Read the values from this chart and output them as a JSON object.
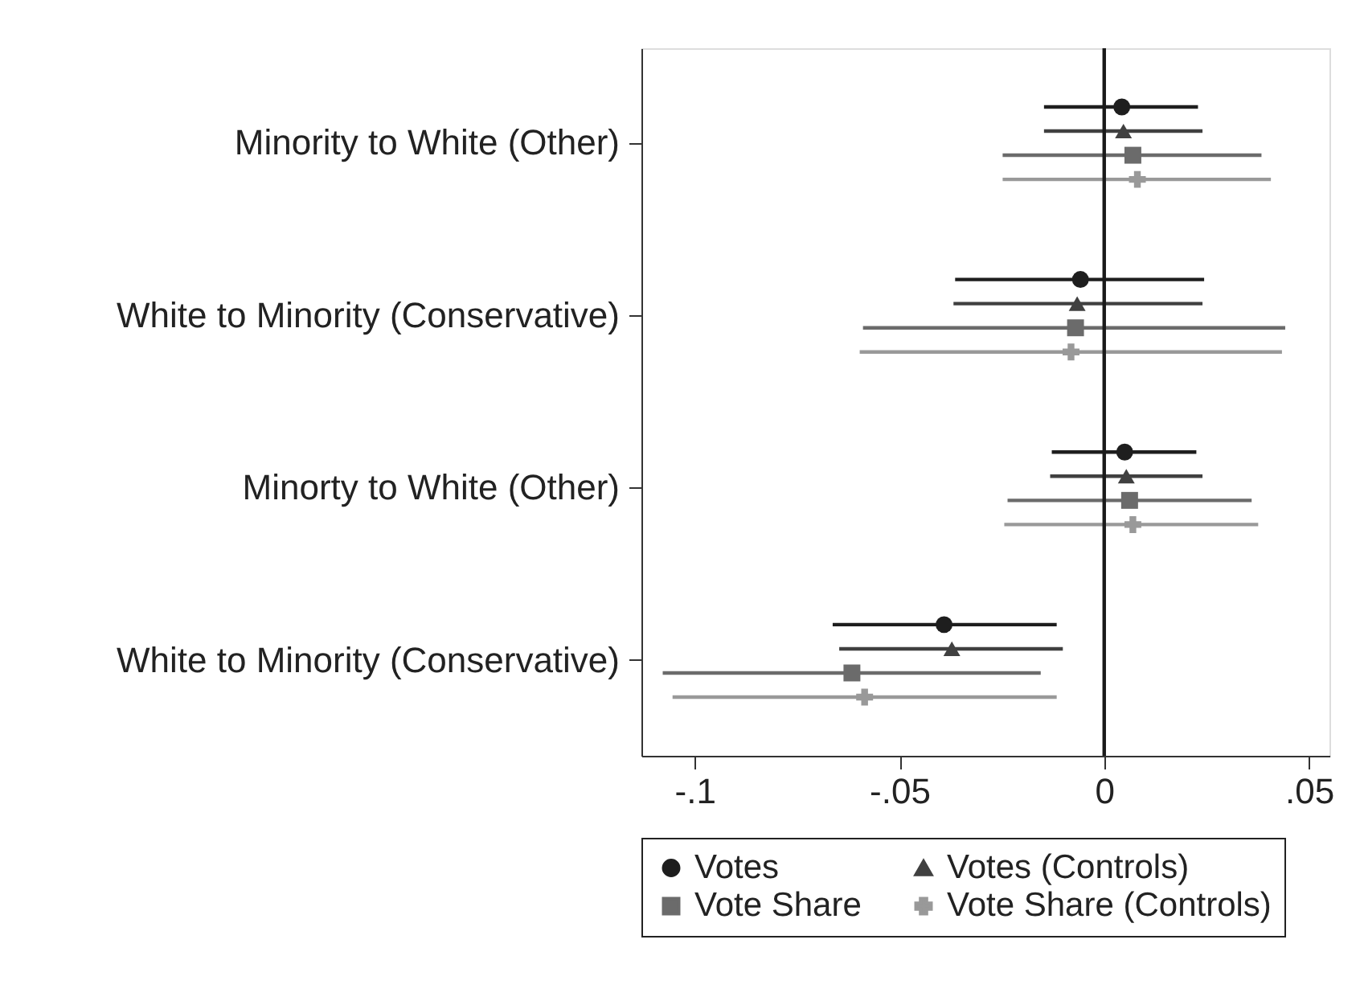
{
  "chart_data": {
    "type": "scatter",
    "orientation": "horizontal",
    "categories": [
      "Minority to White (Other)",
      "White to Minority (Conservative)",
      "Minorty to White (Other)",
      "White to Minority (Conservative)"
    ],
    "series": [
      {
        "name": "Votes",
        "color": "#1e1e1e",
        "marker": "circle",
        "values": [
          0.0043,
          -0.0058,
          0.005,
          -0.0391
        ],
        "errors": [
          [
            -0.0147,
            0.0229
          ],
          [
            -0.0364,
            0.0244
          ],
          [
            -0.0128,
            0.0225
          ],
          [
            -0.0663,
            -0.0116
          ]
        ]
      },
      {
        "name": "Votes (Controls)",
        "color": "#404040",
        "marker": "triangle",
        "values": [
          0.0047,
          -0.0066,
          0.0054,
          -0.0372
        ],
        "errors": [
          [
            -0.0147,
            0.024
          ],
          [
            -0.0368,
            0.024
          ],
          [
            -0.0132,
            0.024
          ],
          [
            -0.0647,
            -0.0101
          ]
        ]
      },
      {
        "name": "Vote Share",
        "color": "#6b6b6b",
        "marker": "square",
        "values": [
          0.007,
          -0.007,
          0.0062,
          -0.0616
        ],
        "errors": [
          [
            -0.0248,
            0.0384
          ],
          [
            -0.0589,
            0.0442
          ],
          [
            -0.0236,
            0.036
          ],
          [
            -0.1078,
            -0.0155
          ]
        ]
      },
      {
        "name": "Vote Share (Controls)",
        "color": "#999999",
        "marker": "cross",
        "values": [
          0.0081,
          -0.0081,
          0.007,
          -0.0585
        ],
        "errors": [
          [
            -0.0248,
            0.0407
          ],
          [
            -0.0597,
            0.0434
          ],
          [
            -0.0244,
            0.0376
          ],
          [
            -0.1054,
            -0.0116
          ]
        ]
      }
    ],
    "xlim": [
      -0.113,
      0.055
    ],
    "xticks": [
      {
        "value": -0.1,
        "label": "-.1"
      },
      {
        "value": -0.05,
        "label": "-.05"
      },
      {
        "value": 0,
        "label": "0"
      },
      {
        "value": 0.05,
        "label": ".05"
      }
    ],
    "ref_lines": [
      {
        "axis": "x",
        "value": 0,
        "color": "#1a1a1a",
        "line_style": "solid"
      }
    ],
    "grid": false,
    "legend": "bottom"
  }
}
